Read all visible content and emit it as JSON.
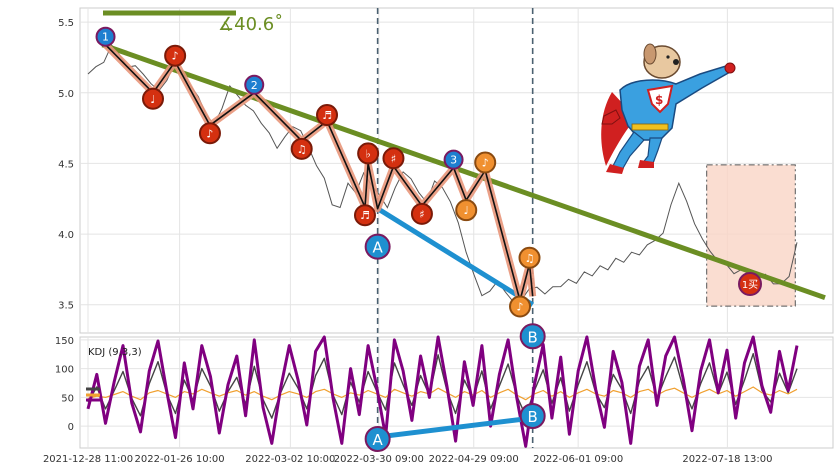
{
  "chart_data": [
    {
      "type": "line",
      "panel": "price",
      "ylim": [
        3.3,
        5.6
      ],
      "yticks": [
        "3.5",
        "4.0",
        "4.5",
        "5.0",
        "5.5"
      ],
      "x_range": [
        "2021-12-28 11:00",
        "2022-08-09 13:00"
      ],
      "grid": true,
      "angle_label": "∡40.6˚",
      "series": [
        {
          "values": [
            5.12,
            5.18,
            5.22,
            5.35,
            5.26,
            5.18,
            5.2,
            5.12,
            5.06,
            5.02,
            5.1,
            5.2,
            5.14,
            5.06,
            4.96,
            4.84,
            4.78,
            4.9,
            5.04,
            4.98,
            4.92,
            4.86,
            4.78,
            4.72,
            4.62,
            4.68,
            4.76,
            4.74,
            4.6,
            4.48,
            4.4,
            4.22,
            4.18,
            4.36,
            4.3,
            4.42,
            4.34,
            4.28,
            4.2,
            4.32,
            4.44,
            4.4,
            4.28,
            4.22,
            4.38,
            4.34,
            4.22,
            4.08,
            3.88,
            3.7,
            3.56,
            3.6,
            3.68,
            3.58,
            3.52,
            3.54,
            3.6,
            3.62,
            3.58,
            3.64,
            3.62,
            3.68,
            3.66,
            3.72,
            3.7,
            3.78,
            3.76,
            3.82,
            3.8,
            3.88,
            3.84,
            3.92,
            3.96,
            4.02,
            4.2,
            4.36,
            4.24,
            4.06,
            3.96,
            3.88,
            3.82,
            3.78,
            3.72,
            3.76,
            3.7,
            3.68,
            3.72,
            3.66,
            3.64,
            3.7,
            3.95
          ]
        }
      ],
      "wave_points": [
        {
          "label": "1",
          "date": "2022-01-03",
          "y": 5.34,
          "marker": "1"
        },
        {
          "date": "2022-01-18",
          "y": 5.0,
          "marker": "♩"
        },
        {
          "date": "2022-01-25",
          "y": 5.22,
          "marker": "♪"
        },
        {
          "date": "2022-02-05",
          "y": 4.77,
          "marker": "♪"
        },
        {
          "label": "2",
          "date": "2022-02-19",
          "y": 5.0,
          "marker": "2"
        },
        {
          "date": "2022-03-06",
          "y": 4.66,
          "marker": "♫"
        },
        {
          "date": "2022-03-14",
          "y": 4.8,
          "marker": "♬"
        },
        {
          "date": "2022-03-26",
          "y": 4.19,
          "marker": "♬"
        },
        {
          "date": "2022-03-27",
          "y": 4.5,
          "marker": "♭"
        },
        {
          "label": "A",
          "date": "2022-03-30",
          "y": 4.18,
          "marker": "A"
        },
        {
          "date": "2022-04-04",
          "y": 4.48,
          "marker": "♯"
        },
        {
          "date": "2022-04-13",
          "y": 4.2,
          "marker": "♯"
        },
        {
          "label": "3",
          "date": "2022-04-23",
          "y": 4.47,
          "marker": "3"
        },
        {
          "date": "2022-04-27",
          "y": 4.24,
          "marker": "♩"
        },
        {
          "date": "2022-05-03",
          "y": 4.45,
          "marker": "♪"
        },
        {
          "date": "2022-05-14",
          "y": 3.53,
          "marker": "♪"
        },
        {
          "date": "2022-05-17",
          "y": 3.79,
          "marker": "♫"
        },
        {
          "label": "B",
          "date": "2022-05-18",
          "y": 3.56,
          "marker": "B"
        }
      ],
      "vlines": [
        "2022-03-30",
        "2022-05-18"
      ],
      "highlight_box": {
        "x_from": "2022-07-12",
        "x_to": "2022-08-09",
        "y_from": 3.49,
        "y_to": 4.49
      },
      "badge_label": "1买"
    },
    {
      "type": "line",
      "panel": "indicator",
      "label": "KDJ (9,3,3)",
      "ylim": [
        -38,
        155
      ],
      "yticks": [
        "0",
        "50",
        "100",
        "150"
      ],
      "xticks": [
        "2021-12-28 11:00",
        "2022-01-26 10:00",
        "2022-03-02 10:00",
        "2022-03-30 09:00",
        "2022-04-29 09:00",
        "2022-06-01 09:00",
        "2022-07-18 13:00"
      ],
      "colors": {
        "k": "#444444",
        "d": "#f0a030",
        "j": "#800080"
      },
      "series": [
        {
          "values": [
            42,
            68,
            30,
            62,
            95,
            48,
            18,
            74,
            112,
            56,
            22,
            80,
            45,
            100,
            70,
            26,
            60,
            85,
            38,
            104,
            46,
            14,
            58,
            92,
            66,
            30,
            88,
            118,
            54,
            20,
            76,
            42,
            95,
            60,
            28,
            110,
            72,
            36,
            88,
            54,
            124,
            62,
            22,
            80,
            48,
            96,
            30,
            70,
            108,
            52,
            18,
            62,
            98,
            40,
            84,
            26,
            72,
            112,
            58,
            32,
            90,
            64,
            22,
            78,
            104,
            48,
            86,
            120,
            66,
            30,
            74,
            110,
            56,
            94,
            38,
            80,
            126,
            62,
            42,
            92,
            58,
            100
          ]
        },
        {
          "values": [
            48,
            52,
            50,
            55,
            60,
            52,
            46,
            58,
            62,
            56,
            50,
            60,
            56,
            64,
            58,
            52,
            58,
            62,
            54,
            60,
            52,
            46,
            54,
            60,
            56,
            50,
            60,
            64,
            56,
            50,
            58,
            54,
            62,
            56,
            50,
            64,
            58,
            52,
            60,
            56,
            66,
            58,
            50,
            60,
            54,
            62,
            50,
            58,
            64,
            54,
            46,
            56,
            62,
            52,
            60,
            50,
            58,
            64,
            56,
            52,
            62,
            58,
            50,
            60,
            64,
            54,
            62,
            66,
            58,
            50,
            58,
            64,
            56,
            62,
            52,
            60,
            68,
            58,
            54,
            62,
            56,
            64
          ]
        },
        {
          "values": [
            30,
            90,
            5,
            78,
            140,
            40,
            -10,
            96,
            148,
            60,
            -20,
            110,
            30,
            140,
            86,
            -12,
            72,
            122,
            18,
            150,
            32,
            -30,
            66,
            140,
            80,
            2,
            130,
            155,
            48,
            -30,
            100,
            20,
            140,
            66,
            -18,
            150,
            96,
            10,
            122,
            50,
            155,
            70,
            -26,
            112,
            36,
            140,
            0,
            90,
            150,
            48,
            -35,
            72,
            142,
            14,
            120,
            -14,
            96,
            155,
            64,
            -2,
            130,
            76,
            -30,
            104,
            150,
            36,
            122,
            155,
            82,
            -8,
            96,
            150,
            58,
            132,
            14,
            110,
            155,
            70,
            24,
            130,
            62,
            140
          ]
        }
      ],
      "divergence_labels": [
        "A",
        "B"
      ]
    }
  ]
}
